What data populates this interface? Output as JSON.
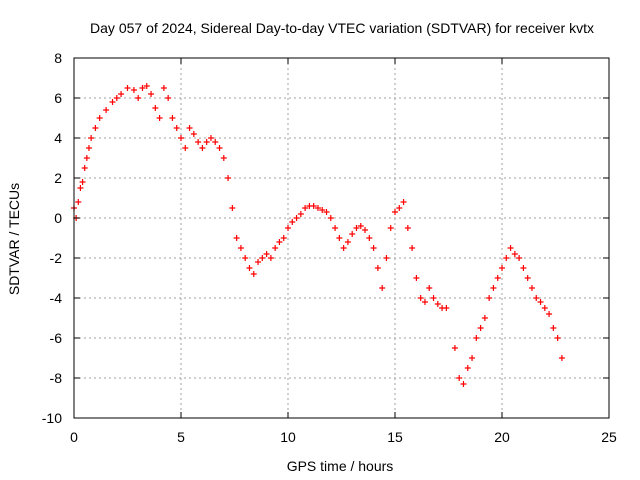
{
  "chart_data": {
    "type": "scatter",
    "title": "Day 057 of 2024, Sidereal Day-to-day VTEC variation (SDTVAR) for receiver kvtx",
    "xlabel": "GPS time / hours",
    "ylabel": "SDTVAR / TECUs",
    "xlim": [
      0,
      25
    ],
    "ylim": [
      -10,
      8
    ],
    "xticks": [
      0,
      5,
      10,
      15,
      20,
      25
    ],
    "yticks": [
      -10,
      -8,
      -6,
      -4,
      -2,
      0,
      2,
      4,
      6,
      8
    ],
    "grid": true,
    "marker": "+",
    "color": "#ff0000",
    "series": [
      {
        "name": "kvtx",
        "x": [
          0.0,
          0.1,
          0.2,
          0.3,
          0.4,
          0.5,
          0.6,
          0.7,
          0.8,
          1.0,
          1.2,
          1.5,
          1.8,
          2.0,
          2.2,
          2.5,
          2.8,
          3.0,
          3.2,
          3.4,
          3.6,
          3.8,
          4.0,
          4.2,
          4.4,
          4.6,
          4.8,
          5.0,
          5.2,
          5.4,
          5.6,
          5.8,
          6.0,
          6.2,
          6.4,
          6.6,
          6.8,
          7.0,
          7.2,
          7.4,
          7.6,
          7.8,
          8.0,
          8.2,
          8.4,
          8.6,
          8.8,
          9.0,
          9.2,
          9.4,
          9.6,
          9.8,
          10.0,
          10.2,
          10.4,
          10.6,
          10.8,
          11.0,
          11.2,
          11.4,
          11.6,
          11.8,
          12.0,
          12.2,
          12.4,
          12.6,
          12.8,
          13.0,
          13.2,
          13.4,
          13.6,
          13.8,
          14.0,
          14.2,
          14.4,
          14.6,
          14.8,
          15.0,
          15.2,
          15.4,
          15.6,
          15.8,
          16.0,
          16.2,
          16.4,
          16.6,
          16.8,
          17.0,
          17.2,
          17.4,
          17.8,
          18.0,
          18.2,
          18.4,
          18.6,
          18.8,
          19.0,
          19.2,
          19.4,
          19.6,
          19.8,
          20.0,
          20.2,
          20.4,
          20.6,
          20.8,
          21.0,
          21.2,
          21.4,
          21.6,
          21.8,
          22.0,
          22.2,
          22.4,
          22.6,
          22.8
        ],
        "y": [
          0.5,
          0.0,
          0.8,
          1.5,
          1.8,
          2.5,
          3.0,
          3.5,
          4.0,
          4.5,
          5.0,
          5.4,
          5.8,
          6.0,
          6.2,
          6.5,
          6.4,
          6.0,
          6.5,
          6.6,
          6.2,
          5.5,
          5.0,
          6.5,
          6.0,
          5.0,
          4.5,
          4.0,
          3.5,
          4.5,
          4.2,
          3.8,
          3.5,
          3.8,
          4.0,
          3.8,
          3.5,
          3.0,
          2.0,
          0.5,
          -1.0,
          -1.5,
          -2.0,
          -2.5,
          -2.8,
          -2.2,
          -2.0,
          -1.8,
          -2.0,
          -1.5,
          -1.2,
          -1.0,
          -0.5,
          -0.2,
          0.0,
          0.2,
          0.5,
          0.6,
          0.6,
          0.5,
          0.4,
          0.3,
          0.0,
          -0.5,
          -1.0,
          -1.5,
          -1.2,
          -0.8,
          -0.5,
          -0.4,
          -0.6,
          -1.0,
          -1.5,
          -2.5,
          -3.5,
          -2.0,
          -0.5,
          0.3,
          0.5,
          0.8,
          -0.5,
          -1.5,
          -3.0,
          -4.0,
          -4.2,
          -3.5,
          -4.0,
          -4.3,
          -4.5,
          -4.5,
          -6.5,
          -8.0,
          -8.3,
          -7.5,
          -7.0,
          -6.0,
          -5.5,
          -5.0,
          -4.0,
          -3.5,
          -3.0,
          -2.5,
          -2.0,
          -1.5,
          -1.8,
          -2.0,
          -2.5,
          -3.0,
          -3.5,
          -4.0,
          -4.2,
          -4.5,
          -4.8,
          -5.5,
          -6.0,
          -7.0
        ]
      }
    ]
  }
}
